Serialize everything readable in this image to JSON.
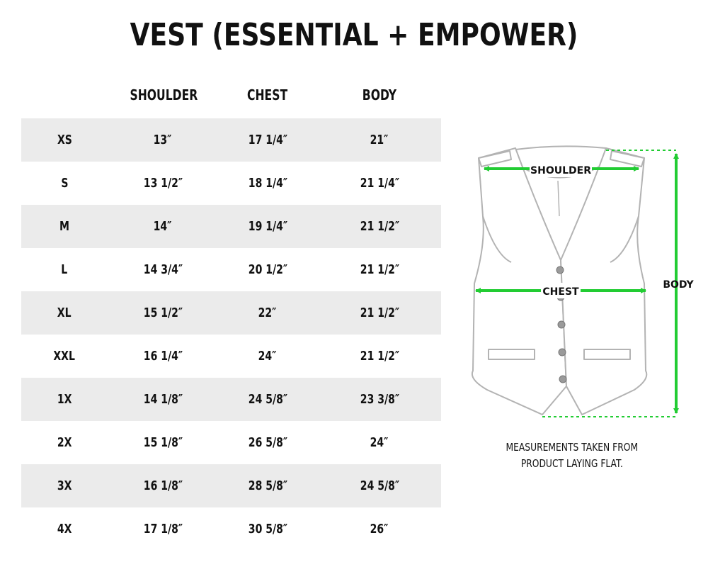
{
  "title": "VEST (ESSENTIAL + EMPOWER)",
  "columns": {
    "shoulder": "SHOULDER",
    "chest": "CHEST",
    "body": "BODY"
  },
  "rows": [
    {
      "size": "XS",
      "shoulder": "13″",
      "chest": "17 1/4″",
      "body": "21″"
    },
    {
      "size": "S",
      "shoulder": "13 1/2″",
      "chest": "18 1/4″",
      "body": "21 1/4″"
    },
    {
      "size": "M",
      "shoulder": "14″",
      "chest": "19 1/4″",
      "body": "21 1/2″"
    },
    {
      "size": "L",
      "shoulder": "14 3/4″",
      "chest": "20 1/2″",
      "body": "21 1/2″"
    },
    {
      "size": "XL",
      "shoulder": "15 1/2″",
      "chest": "22″",
      "body": "21 1/2″"
    },
    {
      "size": "XXL",
      "shoulder": "16 1/4″",
      "chest": "24″",
      "body": "21 1/2″"
    },
    {
      "size": "1X",
      "shoulder": "14 1/8″",
      "chest": "24 5/8″",
      "body": "23 3/8″"
    },
    {
      "size": "2X",
      "shoulder": "15 1/8″",
      "chest": "26 5/8″",
      "body": "24″"
    },
    {
      "size": "3X",
      "shoulder": "16 1/8″",
      "chest": "28 5/8″",
      "body": "24 5/8″"
    },
    {
      "size": "4X",
      "shoulder": "17 1/8″",
      "chest": "30 5/8″",
      "body": "26″"
    }
  ],
  "diagram": {
    "shoulder_label": "SHOULDER",
    "chest_label": "CHEST",
    "body_label": "BODY",
    "measure_color": "#22cc33",
    "outline_color": "#b3b3b3",
    "icon": "vest-outline-icon"
  },
  "note": {
    "line1": "MEASUREMENTS TAKEN FROM",
    "line2": "PRODUCT LAYING FLAT."
  }
}
